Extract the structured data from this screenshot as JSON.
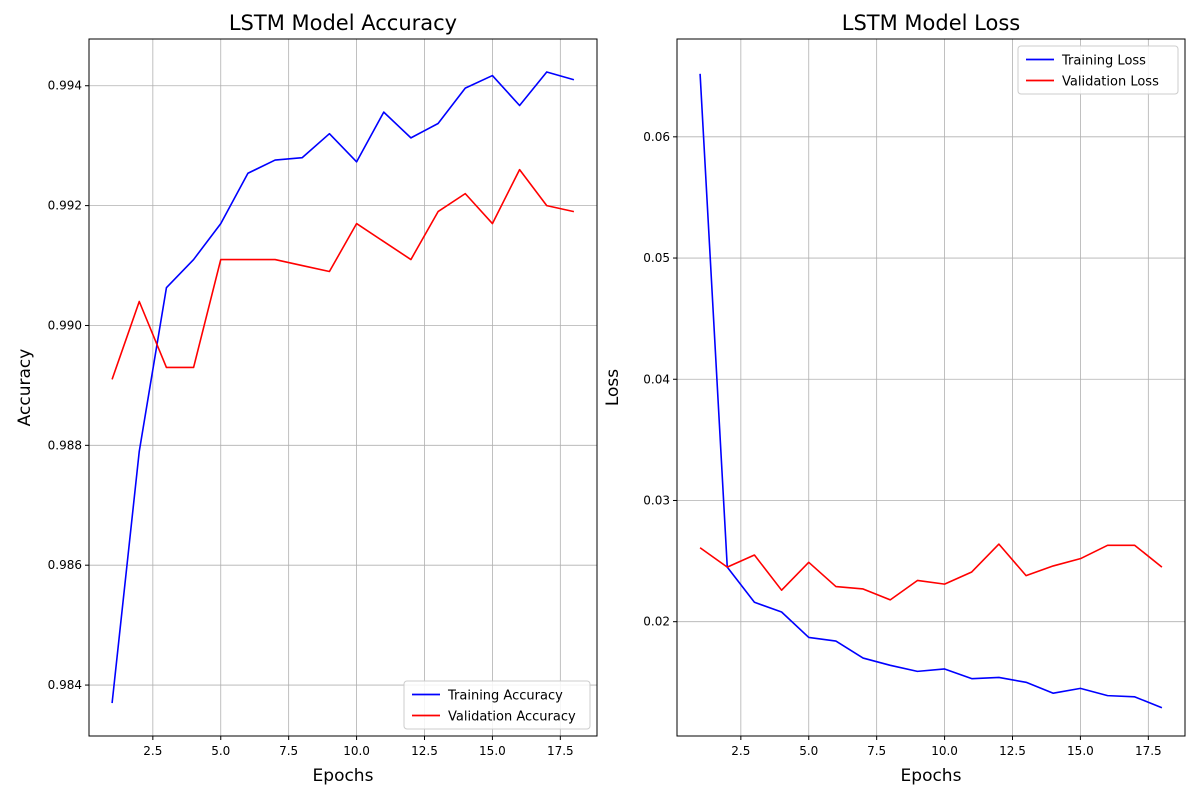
{
  "chart_data": [
    {
      "type": "line",
      "title": "LSTM Model Accuracy",
      "xlabel": "Epochs",
      "ylabel": "Accuracy",
      "xlim": [
        0.15,
        18.85
      ],
      "ylim": [
        0.98315,
        0.99478
      ],
      "xticks": [
        2.5,
        5.0,
        7.5,
        10.0,
        12.5,
        15.0,
        17.5
      ],
      "xtick_labels": [
        "2.5",
        "5.0",
        "7.5",
        "10.0",
        "12.5",
        "15.0",
        "17.5"
      ],
      "yticks": [
        0.984,
        0.986,
        0.988,
        0.99,
        0.992,
        0.994
      ],
      "ytick_labels": [
        "0.984",
        "0.986",
        "0.988",
        "0.990",
        "0.992",
        "0.994"
      ],
      "grid": true,
      "legend_position": "lower-right",
      "x": [
        1,
        2,
        3,
        4,
        5,
        6,
        7,
        8,
        9,
        10,
        11,
        12,
        13,
        14,
        15,
        16,
        17,
        18
      ],
      "series": [
        {
          "name": "Training Accuracy",
          "color": "#0000ff",
          "values": [
            0.9837,
            0.9879,
            0.99063,
            0.9911,
            0.9917,
            0.99254,
            0.99276,
            0.9928,
            0.9932,
            0.99273,
            0.99356,
            0.99313,
            0.99337,
            0.99396,
            0.99417,
            0.99367,
            0.99423,
            0.9941
          ]
        },
        {
          "name": "Validation Accuracy",
          "color": "#ff0000",
          "values": [
            0.9891,
            0.9904,
            0.9893,
            0.9893,
            0.9911,
            0.9911,
            0.9911,
            0.991,
            0.9909,
            0.9917,
            0.9914,
            0.9911,
            0.9919,
            0.9922,
            0.9917,
            0.9926,
            0.992,
            0.9919
          ]
        }
      ]
    },
    {
      "type": "line",
      "title": "LSTM Model Loss",
      "xlabel": "Epochs",
      "ylabel": "Loss",
      "xlim": [
        0.15,
        18.85
      ],
      "ylim": [
        0.01057,
        0.06807
      ],
      "xticks": [
        2.5,
        5.0,
        7.5,
        10.0,
        12.5,
        15.0,
        17.5
      ],
      "xtick_labels": [
        "2.5",
        "5.0",
        "7.5",
        "10.0",
        "12.5",
        "15.0",
        "17.5"
      ],
      "yticks": [
        0.02,
        0.03,
        0.04,
        0.05,
        0.06
      ],
      "ytick_labels": [
        "0.02",
        "0.03",
        "0.04",
        "0.05",
        "0.06"
      ],
      "grid": true,
      "legend_position": "upper-right",
      "x": [
        1,
        2,
        3,
        4,
        5,
        6,
        7,
        8,
        9,
        10,
        11,
        12,
        13,
        14,
        15,
        16,
        17,
        18
      ],
      "series": [
        {
          "name": "Training Loss",
          "color": "#0000ff",
          "values": [
            0.0652,
            0.0245,
            0.0216,
            0.0208,
            0.0187,
            0.0184,
            0.017,
            0.0164,
            0.0159,
            0.0161,
            0.0153,
            0.0154,
            0.015,
            0.0141,
            0.0145,
            0.0139,
            0.0138,
            0.0129
          ]
        },
        {
          "name": "Validation Loss",
          "color": "#ff0000",
          "values": [
            0.0261,
            0.0245,
            0.0255,
            0.0226,
            0.0249,
            0.0229,
            0.0227,
            0.0218,
            0.0234,
            0.0231,
            0.0241,
            0.0264,
            0.0238,
            0.0246,
            0.0252,
            0.0263,
            0.0263,
            0.0245
          ]
        }
      ]
    }
  ]
}
